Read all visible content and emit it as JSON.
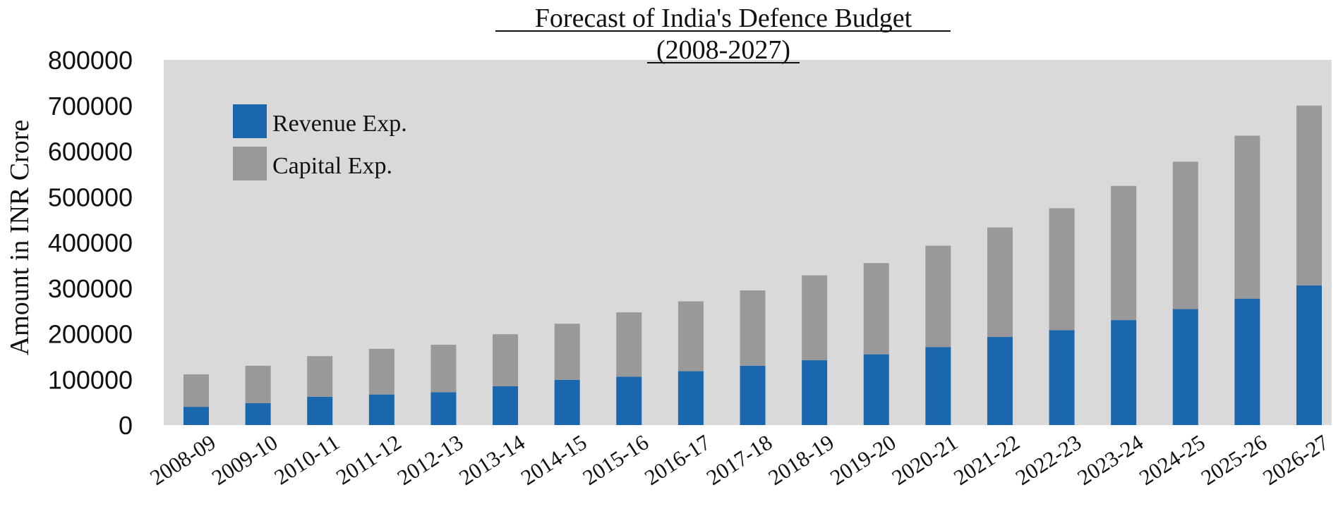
{
  "chart_data": {
    "type": "bar",
    "stacked": true,
    "title": "Forecast of India's Defence Budget",
    "subtitle": "(2008-2027)",
    "xlabel": "",
    "ylabel": "Amount in INR Crore",
    "ylim": [
      0,
      800000
    ],
    "yticks": [
      "0",
      "100000",
      "200000",
      "300000",
      "400000",
      "500000",
      "600000",
      "700000",
      "800000"
    ],
    "legend_position": "top-left",
    "grid": false,
    "categories": [
      "2008-09",
      "2009-10",
      "2010-11",
      "2011-12",
      "2012-13",
      "2013-14",
      "2014-15",
      "2015-16",
      "2016-17",
      "2017-18",
      "2018-19",
      "2019-20",
      "2020-21",
      "2021-22",
      "2022-23",
      "2023-24",
      "2024-25",
      "2025-26",
      "2026-27"
    ],
    "series": [
      {
        "name": "Revenue Exp.",
        "color": "#1a67ad",
        "values": [
          40000,
          48000,
          62000,
          67000,
          72000,
          85000,
          99000,
          106000,
          118000,
          130000,
          142000,
          155000,
          171000,
          193000,
          208000,
          230000,
          254000,
          277000,
          306000
        ]
      },
      {
        "name": "Capital Exp.",
        "color": "#999999",
        "values": [
          71000,
          82000,
          89000,
          100000,
          104000,
          114000,
          123000,
          141000,
          153000,
          165000,
          186000,
          200000,
          222000,
          240000,
          267000,
          294000,
          323000,
          357000,
          394000
        ]
      }
    ],
    "plot_background": "#d9d9d9"
  }
}
